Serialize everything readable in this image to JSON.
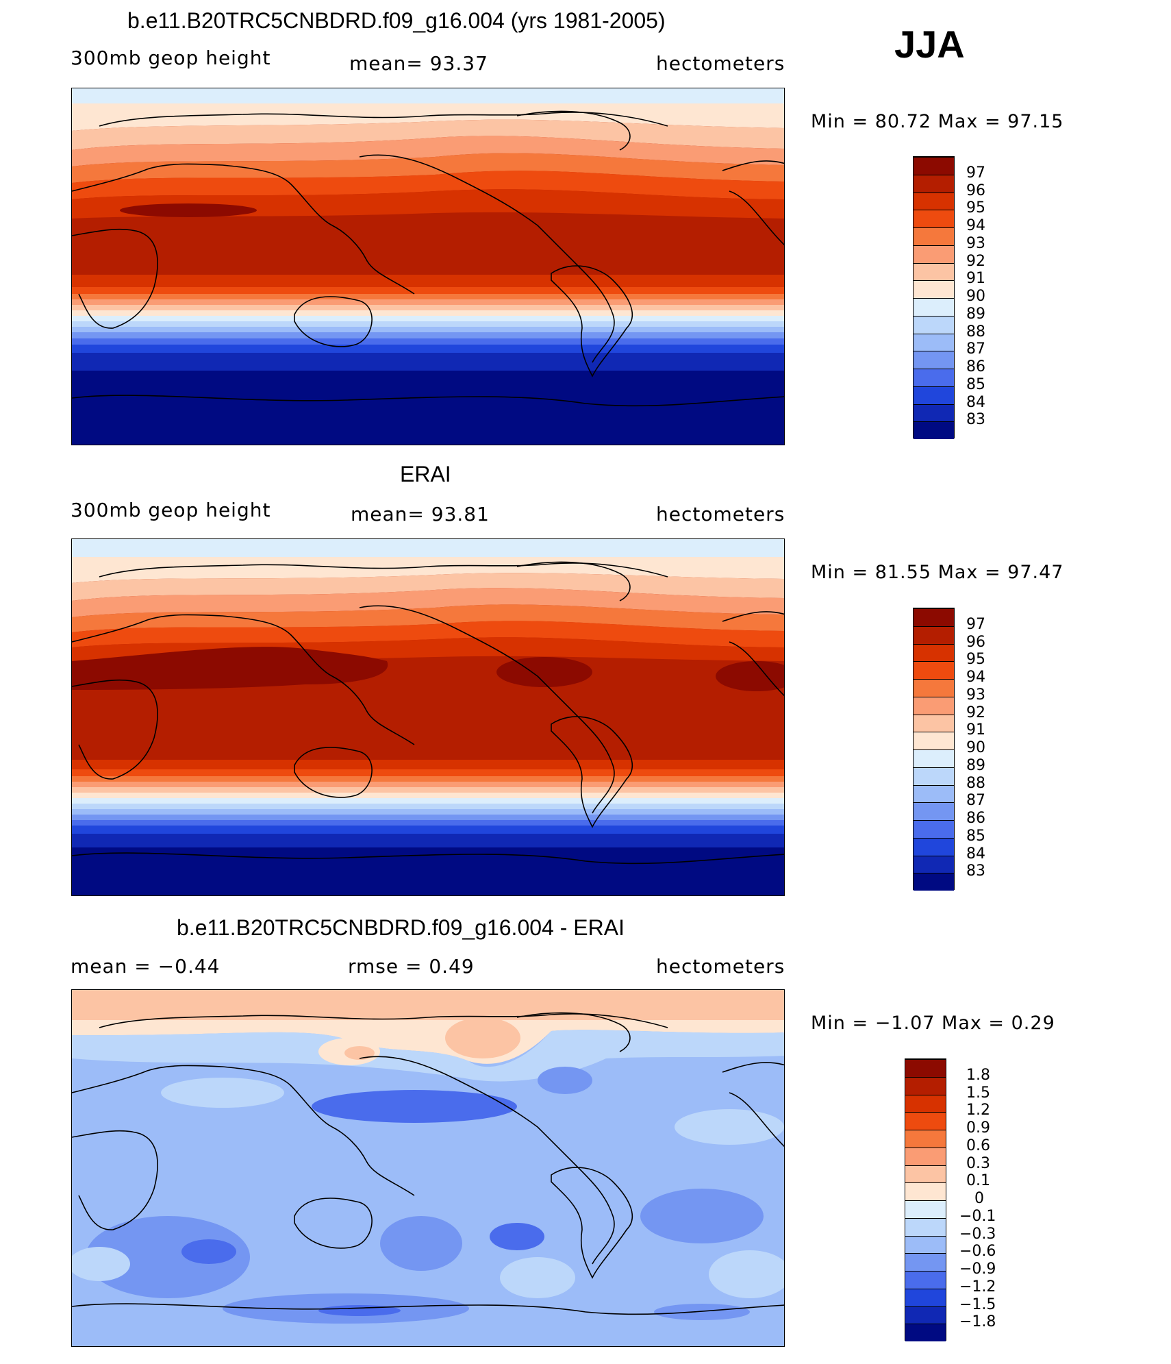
{
  "season": "JJA",
  "units": "hectometers",
  "panels": [
    {
      "title": "b.e11.B20TRC5CNBDRD.f09_g16.004 (yrs 1981-2005)",
      "left_label": "300mb geop height",
      "center_label": "mean=   93.37",
      "right_label": "hectometers",
      "minmax": "Min =   80.72 Max =   97.15"
    },
    {
      "title": "ERAI",
      "left_label": "300mb geop height",
      "center_label": "mean=   93.81",
      "right_label": "hectometers",
      "minmax": "Min =   81.55 Max =   97.47"
    },
    {
      "title": "b.e11.B20TRC5CNBDRD.f09_g16.004 - ERAI",
      "left_label": "mean =   −0.44",
      "center_label": "rmse =     0.49",
      "right_label": "hectometers",
      "minmax": "Min =   −1.07 Max =     0.29"
    }
  ],
  "colorbars": {
    "height": {
      "labels": [
        "97",
        "96",
        "95",
        "94",
        "93",
        "92",
        "91",
        "90",
        "89",
        "88",
        "87",
        "86",
        "85",
        "84",
        "83"
      ],
      "colors": [
        "#8c0a00",
        "#b41e00",
        "#d73200",
        "#ee4b0f",
        "#f5783c",
        "#fa9c74",
        "#fcc4a4",
        "#fee6d2",
        "#dceefc",
        "#bcd7fa",
        "#9cbcf8",
        "#7496f2",
        "#4a6cec",
        "#2046dc",
        "#1028b4",
        "#000a82"
      ]
    },
    "diff": {
      "labels": [
        "1.8",
        "1.5",
        "1.2",
        "0.9",
        "0.6",
        "0.3",
        "0.1",
        "0",
        "−0.1",
        "−0.3",
        "−0.6",
        "−0.9",
        "−1.2",
        "−1.5",
        "−1.8"
      ],
      "colors": [
        "#8c0a00",
        "#b41e00",
        "#d73200",
        "#ee4b0f",
        "#f5783c",
        "#fa9c74",
        "#fcc4a4",
        "#fee6d2",
        "#dceefc",
        "#bcd7fa",
        "#9cbcf8",
        "#7496f2",
        "#4a6cec",
        "#2046dc",
        "#1028b4",
        "#000a82"
      ]
    }
  }
}
